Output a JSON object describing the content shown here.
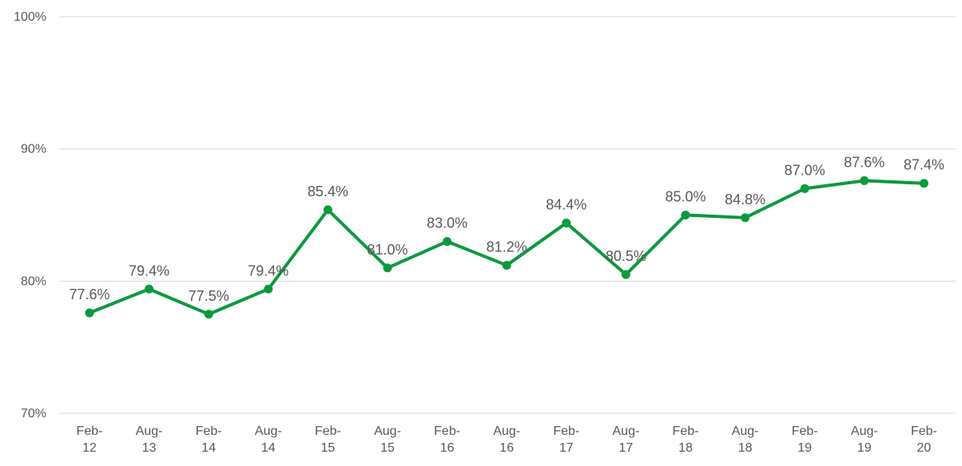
{
  "chart_data": {
    "type": "line",
    "title": "",
    "xlabel": "",
    "ylabel": "",
    "ylim": [
      70,
      100
    ],
    "yticks": [
      {
        "value": 70,
        "label": "70%"
      },
      {
        "value": 80,
        "label": "80%"
      },
      {
        "value": 90,
        "label": "90%"
      },
      {
        "value": 100,
        "label": "100%"
      }
    ],
    "grid": true,
    "legend": "none",
    "categories": [
      [
        "Feb-",
        "12"
      ],
      [
        "Aug-",
        "13"
      ],
      [
        "Feb-",
        "14"
      ],
      [
        "Aug-",
        "14"
      ],
      [
        "Feb-",
        "15"
      ],
      [
        "Aug-",
        "15"
      ],
      [
        "Feb-",
        "16"
      ],
      [
        "Aug-",
        "16"
      ],
      [
        "Feb-",
        "17"
      ],
      [
        "Aug-",
        "17"
      ],
      [
        "Feb-",
        "18"
      ],
      [
        "Aug-",
        "18"
      ],
      [
        "Feb-",
        "19"
      ],
      [
        "Aug-",
        "19"
      ],
      [
        "Feb-",
        "20"
      ]
    ],
    "series": [
      {
        "color": "#0a9a3c",
        "values": [
          77.6,
          79.4,
          77.5,
          79.4,
          85.4,
          81.0,
          83.0,
          81.2,
          84.4,
          80.5,
          85.0,
          84.8,
          87.0,
          87.6,
          87.4
        ],
        "labels": [
          "77.6%",
          "79.4%",
          "77.5%",
          "79.4%",
          "85.4%",
          "81.0%",
          "83.0%",
          "81.2%",
          "84.4%",
          "80.5%",
          "85.0%",
          "84.8%",
          "87.0%",
          "87.6%",
          "87.4%"
        ]
      }
    ]
  }
}
